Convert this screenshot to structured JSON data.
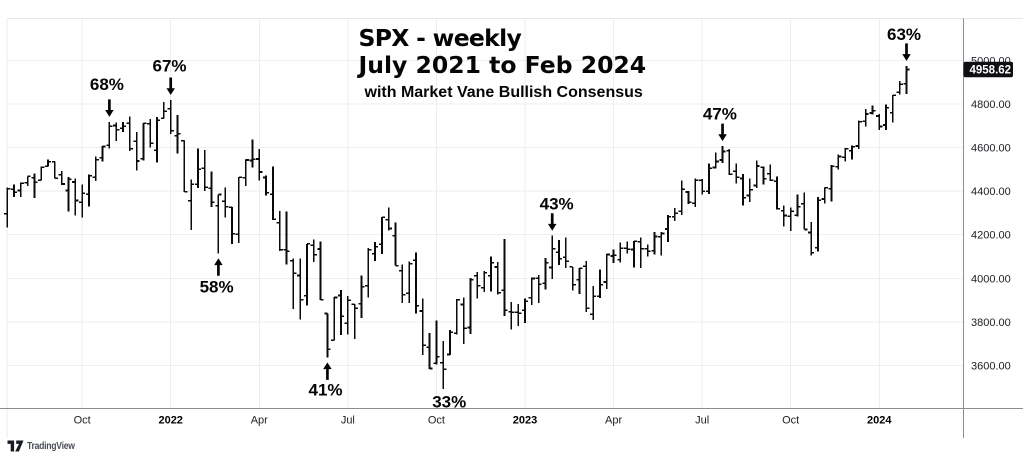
{
  "title": {
    "line1": "SPX - weekly",
    "line2": "July 2021 to Feb 2024",
    "subtitle": "with Market Vane Bullish Consensus"
  },
  "footer": {
    "brand": "TradingView",
    "logo_icon": "tradingview-logo"
  },
  "price_scale": {
    "labels": [
      {
        "text": "5000.00",
        "price": 5000
      },
      {
        "text": "4800.00",
        "price": 4800
      },
      {
        "text": "4600.00",
        "price": 4600
      },
      {
        "text": "4400.00",
        "price": 4400
      },
      {
        "text": "4200.00",
        "price": 4200
      },
      {
        "text": "4000.00",
        "price": 4000
      },
      {
        "text": "3800.00",
        "price": 3800
      },
      {
        "text": "3600.00",
        "price": 3600
      }
    ],
    "last_price_tag": {
      "text": "4958.62",
      "price": 4958.62
    }
  },
  "time_scale": {
    "labels": [
      {
        "text": "Oct",
        "week": 11,
        "bold": false
      },
      {
        "text": "2022",
        "week": 24,
        "bold": true
      },
      {
        "text": "Apr",
        "week": 37,
        "bold": false
      },
      {
        "text": "Jul",
        "week": 50,
        "bold": false
      },
      {
        "text": "Oct",
        "week": 63,
        "bold": false
      },
      {
        "text": "2023",
        "week": 76,
        "bold": true
      },
      {
        "text": "Apr",
        "week": 89,
        "bold": false
      },
      {
        "text": "Jul",
        "week": 102,
        "bold": false
      },
      {
        "text": "Oct",
        "week": 115,
        "bold": false
      },
      {
        "text": "2024",
        "week": 128,
        "bold": true
      }
    ]
  },
  "annotations": [
    {
      "label": "68%",
      "week": 15,
      "direction": "down",
      "text_dx": -2.5,
      "text_dy": -3.4
    },
    {
      "label": "67%",
      "week": 24,
      "direction": "down",
      "text_dx": -1.2,
      "text_dy": 0
    },
    {
      "label": "58%",
      "week": 31,
      "direction": "up",
      "text_dx": -1.8,
      "text_dy": 0
    },
    {
      "label": "41%",
      "week": 47,
      "direction": "up",
      "text_dx": -1.9,
      "text_dy": -1
    },
    {
      "label": "33%",
      "week": 64,
      "direction": "none",
      "text_dx": 6,
      "text_dy": 3
    },
    {
      "label": "43%",
      "week": 80,
      "direction": "down",
      "text_dx": 4.4,
      "text_dy": 2.5
    },
    {
      "label": "47%",
      "week": 105,
      "direction": "down",
      "text_dx": -2.7,
      "text_dy": 2.1
    },
    {
      "label": "63%",
      "week": 132,
      "direction": "down",
      "text_dx": -2.5,
      "text_dy": 2.6
    }
  ],
  "chart_data": {
    "type": "ohlc-bar",
    "symbol": "SPX",
    "timeframe": "weekly",
    "title": "SPX - weekly, July 2021 to Feb 2024, with Market Vane Bullish Consensus",
    "x_range": [
      "2021-07-19",
      "2024-01-29"
    ],
    "ylim": [
      3402,
      5193
    ],
    "grid": true,
    "columns": [
      "week_start",
      "open",
      "high",
      "low",
      "close"
    ],
    "bars": [
      [
        "2021-07-19",
        4296.4,
        4418.0,
        4233.1,
        4411.8
      ],
      [
        "2021-07-26",
        4409.6,
        4429.8,
        4372.5,
        4395.3
      ],
      [
        "2021-08-02",
        4402.9,
        4440.8,
        4373.0,
        4436.5
      ],
      [
        "2021-08-09",
        4437.8,
        4468.4,
        4424.7,
        4468.0
      ],
      [
        "2021-08-16",
        4461.6,
        4480.3,
        4367.7,
        4441.7
      ],
      [
        "2021-08-23",
        4450.3,
        4513.3,
        4450.3,
        4509.4
      ],
      [
        "2021-08-30",
        4513.8,
        4545.9,
        4513.8,
        4535.4
      ],
      [
        "2021-09-07",
        4535.4,
        4535.4,
        4457.7,
        4458.6
      ],
      [
        "2021-09-13",
        4474.8,
        4492.1,
        4427.8,
        4433.0
      ],
      [
        "2021-09-20",
        4402.9,
        4465.4,
        4305.9,
        4455.5
      ],
      [
        "2021-09-27",
        4442.1,
        4457.3,
        4288.5,
        4357.0
      ],
      [
        "2021-10-04",
        4348.8,
        4429.9,
        4278.9,
        4391.3
      ],
      [
        "2021-10-11",
        4385.4,
        4475.8,
        4329.9,
        4471.4
      ],
      [
        "2021-10-18",
        4463.7,
        4559.7,
        4447.5,
        4544.9
      ],
      [
        "2021-10-25",
        4553.7,
        4608.1,
        4537.4,
        4605.4
      ],
      [
        "2021-11-01",
        4610.6,
        4718.5,
        4595.1,
        4697.5
      ],
      [
        "2021-11-08",
        4701.5,
        4714.9,
        4630.9,
        4682.9
      ],
      [
        "2021-11-15",
        4689.3,
        4717.8,
        4672.8,
        4698.0
      ],
      [
        "2021-11-22",
        4712.0,
        4743.8,
        4585.4,
        4594.6
      ],
      [
        "2021-11-29",
        4628.8,
        4672.9,
        4495.1,
        4538.4
      ],
      [
        "2021-12-06",
        4548.4,
        4713.6,
        4540.5,
        4712.0
      ],
      [
        "2021-12-13",
        4710.3,
        4732.0,
        4600.2,
        4620.6
      ],
      [
        "2021-12-20",
        4587.9,
        4740.7,
        4531.1,
        4725.8
      ],
      [
        "2021-12-27",
        4734.0,
        4808.9,
        4734.0,
        4766.2
      ],
      [
        "2022-01-03",
        4778.1,
        4818.6,
        4662.7,
        4677.0
      ],
      [
        "2022-01-10",
        4655.3,
        4748.8,
        4573.0,
        4662.9
      ],
      [
        "2022-01-18",
        4632.2,
        4632.2,
        4395.3,
        4397.9
      ],
      [
        "2022-01-24",
        4356.3,
        4453.2,
        4222.6,
        4431.9
      ],
      [
        "2022-01-31",
        4431.8,
        4595.3,
        4414.0,
        4500.5
      ],
      [
        "2022-02-07",
        4505.8,
        4590.0,
        4401.4,
        4418.6
      ],
      [
        "2022-02-14",
        4412.6,
        4489.6,
        4327.2,
        4348.9
      ],
      [
        "2022-02-22",
        4332.7,
        4385.3,
        4114.7,
        4384.7
      ],
      [
        "2022-02-28",
        4354.2,
        4416.8,
        4279.5,
        4328.9
      ],
      [
        "2022-03-07",
        4327.0,
        4327.0,
        4157.9,
        4204.3
      ],
      [
        "2022-03-14",
        4202.8,
        4465.4,
        4161.7,
        4463.1
      ],
      [
        "2022-03-21",
        4462.4,
        4546.0,
        4424.3,
        4543.1
      ],
      [
        "2022-03-28",
        4541.1,
        4637.3,
        4507.6,
        4545.9
      ],
      [
        "2022-04-04",
        4547.9,
        4593.5,
        4450.0,
        4488.3
      ],
      [
        "2022-04-11",
        4462.6,
        4471.0,
        4381.3,
        4392.6
      ],
      [
        "2022-04-18",
        4385.6,
        4512.9,
        4267.6,
        4271.8
      ],
      [
        "2022-04-25",
        4255.3,
        4308.5,
        4124.3,
        4131.9
      ],
      [
        "2022-05-02",
        4130.6,
        4307.7,
        4062.5,
        4123.3
      ],
      [
        "2022-05-09",
        4081.3,
        4091.0,
        3858.9,
        4023.9
      ],
      [
        "2022-05-16",
        4013.0,
        4090.7,
        3810.3,
        3901.4
      ],
      [
        "2022-05-23",
        3919.4,
        4158.5,
        3875.1,
        4158.2
      ],
      [
        "2022-05-31",
        4151.1,
        4177.5,
        4073.9,
        4108.5
      ],
      [
        "2022-06-06",
        4134.7,
        4168.8,
        3900.2,
        3900.9
      ],
      [
        "2022-06-13",
        3838.2,
        3838.7,
        3636.9,
        3674.8
      ],
      [
        "2022-06-21",
        3715.3,
        3913.7,
        3715.3,
        3911.7
      ],
      [
        "2022-06-27",
        3920.8,
        3945.9,
        3738.7,
        3825.3
      ],
      [
        "2022-07-05",
        3792.6,
        3918.5,
        3742.1,
        3899.4
      ],
      [
        "2022-07-11",
        3880.9,
        3880.9,
        3721.6,
        3863.2
      ],
      [
        "2022-07-18",
        3883.8,
        4012.4,
        3818.6,
        3961.6
      ],
      [
        "2022-07-25",
        3965.7,
        4140.2,
        3910.7,
        4130.3
      ],
      [
        "2022-08-01",
        4112.4,
        4167.7,
        4079.8,
        4145.2
      ],
      [
        "2022-08-08",
        4155.9,
        4280.5,
        4112.1,
        4280.2
      ],
      [
        "2022-08-15",
        4269.4,
        4325.3,
        4218.7,
        4228.5
      ],
      [
        "2022-08-22",
        4195.1,
        4257.0,
        4057.7,
        4057.7
      ],
      [
        "2022-08-29",
        4034.6,
        4063.0,
        3886.4,
        3924.3
      ],
      [
        "2022-09-06",
        3930.9,
        4076.8,
        3886.8,
        4067.4
      ],
      [
        "2022-09-12",
        4083.7,
        4119.3,
        3837.6,
        3873.3
      ],
      [
        "2022-09-19",
        3849.9,
        3907.1,
        3647.5,
        3693.2
      ],
      [
        "2022-09-26",
        3682.7,
        3749.6,
        3584.1,
        3585.6
      ],
      [
        "2022-10-03",
        3609.8,
        3806.9,
        3604.9,
        3639.7
      ],
      [
        "2022-10-10",
        3612.3,
        3712.0,
        3491.6,
        3583.1
      ],
      [
        "2022-10-17",
        3650.0,
        3762.8,
        3647.4,
        3752.8
      ],
      [
        "2022-10-24",
        3748.0,
        3905.4,
        3741.7,
        3901.1
      ],
      [
        "2022-10-31",
        3879.8,
        3911.8,
        3698.2,
        3770.6
      ],
      [
        "2022-11-07",
        3774.1,
        4001.5,
        3744.2,
        3992.9
      ],
      [
        "2022-11-14",
        4012.4,
        4028.8,
        3906.5,
        3965.3
      ],
      [
        "2022-11-21",
        3956.2,
        4034.0,
        3937.7,
        4026.1
      ],
      [
        "2022-11-28",
        4011.0,
        4100.5,
        3938.4,
        4071.7
      ],
      [
        "2022-12-05",
        4052.0,
        4075.0,
        3925.0,
        3934.4
      ],
      [
        "2022-12-12",
        3944.8,
        4180.2,
        3827.9,
        3852.4
      ],
      [
        "2022-12-19",
        3846.0,
        3890.0,
        3764.5,
        3844.8
      ],
      [
        "2022-12-27",
        3843.3,
        3881.0,
        3780.8,
        3839.5
      ],
      [
        "2023-01-03",
        3853.3,
        3906.2,
        3794.3,
        3895.1
      ],
      [
        "2023-01-09",
        3910.8,
        4003.9,
        3877.3,
        3999.1
      ],
      [
        "2023-01-17",
        3999.3,
        4015.4,
        3885.5,
        3972.6
      ],
      [
        "2023-01-23",
        3978.1,
        4094.2,
        3949.1,
        4070.6
      ],
      [
        "2023-01-30",
        4049.3,
        4195.4,
        3996.0,
        4136.5
      ],
      [
        "2023-02-06",
        4119.5,
        4176.5,
        4060.8,
        4090.5
      ],
      [
        "2023-02-13",
        4096.6,
        4186.9,
        4047.9,
        4079.1
      ],
      [
        "2023-02-21",
        4052.3,
        4052.3,
        3943.1,
        3970.0
      ],
      [
        "2023-02-27",
        3992.4,
        4048.3,
        3928.2,
        4045.6
      ],
      [
        "2023-03-06",
        4055.1,
        4078.5,
        3846.3,
        3861.6
      ],
      [
        "2023-03-13",
        3835.1,
        3964.9,
        3808.9,
        3916.6
      ],
      [
        "2023-03-20",
        3917.0,
        4039.5,
        3909.2,
        3971.0
      ],
      [
        "2023-03-27",
        3982.9,
        4110.8,
        3951.5,
        4109.3
      ],
      [
        "2023-04-03",
        4102.2,
        4133.1,
        4069.8,
        4105.0
      ],
      [
        "2023-04-10",
        4085.2,
        4163.2,
        4072.6,
        4137.6
      ],
      [
        "2023-04-17",
        4137.2,
        4169.5,
        4113.9,
        4133.5
      ],
      [
        "2023-04-24",
        4132.0,
        4170.1,
        4049.4,
        4169.5
      ],
      [
        "2023-05-01",
        4167.9,
        4186.9,
        4048.3,
        4136.3
      ],
      [
        "2023-05-08",
        4136.3,
        4154.3,
        4098.9,
        4124.1
      ],
      [
        "2023-05-15",
        4126.7,
        4212.9,
        4109.9,
        4192.0
      ],
      [
        "2023-05-22",
        4190.8,
        4212.9,
        4104.0,
        4205.5
      ],
      [
        "2023-05-30",
        4226.4,
        4290.7,
        4166.2,
        4282.4
      ],
      [
        "2023-06-05",
        4282.9,
        4322.6,
        4263.1,
        4298.9
      ],
      [
        "2023-06-12",
        4308.3,
        4448.5,
        4290.1,
        4409.6
      ],
      [
        "2023-06-20",
        4396.1,
        4400.1,
        4341.3,
        4348.3
      ],
      [
        "2023-06-26",
        4344.8,
        4458.5,
        4328.1,
        4450.4
      ],
      [
        "2023-07-03",
        4450.5,
        4456.5,
        4385.1,
        4399.0
      ],
      [
        "2023-07-10",
        4399.9,
        4527.8,
        4386.4,
        4505.4
      ],
      [
        "2023-07-17",
        4508.6,
        4578.4,
        4504.9,
        4536.3
      ],
      [
        "2023-07-24",
        4543.4,
        4607.1,
        4528.6,
        4582.2
      ],
      [
        "2023-07-31",
        4584.8,
        4594.2,
        4474.6,
        4478.0
      ],
      [
        "2023-08-07",
        4491.6,
        4527.4,
        4436.3,
        4464.1
      ],
      [
        "2023-08-14",
        4458.1,
        4479.4,
        4335.3,
        4369.7
      ],
      [
        "2023-08-21",
        4380.3,
        4458.3,
        4350.3,
        4405.7
      ],
      [
        "2023-08-28",
        4426.0,
        4541.3,
        4414.5,
        4515.8
      ],
      [
        "2023-09-05",
        4510.1,
        4514.3,
        4430.5,
        4457.5
      ],
      [
        "2023-09-11",
        4480.0,
        4522.8,
        4447.2,
        4450.3
      ],
      [
        "2023-09-18",
        4445.1,
        4466.4,
        4316.5,
        4320.1
      ],
      [
        "2023-09-25",
        4310.6,
        4333.2,
        4238.6,
        4288.1
      ],
      [
        "2023-10-02",
        4284.5,
        4324.1,
        4216.5,
        4308.5
      ],
      [
        "2023-10-09",
        4289.0,
        4385.5,
        4283.8,
        4327.8
      ],
      [
        "2023-10-16",
        4342.4,
        4393.6,
        4223.0,
        4224.2
      ],
      [
        "2023-10-23",
        4210.4,
        4259.4,
        4103.8,
        4117.4
      ],
      [
        "2023-10-30",
        4139.4,
        4373.6,
        4122.8,
        4358.3
      ],
      [
        "2023-11-06",
        4364.3,
        4418.0,
        4343.9,
        4415.2
      ],
      [
        "2023-11-13",
        4412.0,
        4521.2,
        4353.3,
        4514.0
      ],
      [
        "2023-11-20",
        4511.7,
        4568.1,
        4499.7,
        4559.3
      ],
      [
        "2023-11-27",
        4555.8,
        4599.4,
        4537.2,
        4594.6
      ],
      [
        "2023-12-04",
        4586.2,
        4609.2,
        4546.5,
        4604.4
      ],
      [
        "2023-12-11",
        4607.4,
        4725.5,
        4593.4,
        4719.2
      ],
      [
        "2023-12-18",
        4721.0,
        4778.0,
        4697.8,
        4754.6
      ],
      [
        "2023-12-26",
        4758.9,
        4793.3,
        4751.0,
        4769.8
      ],
      [
        "2024-01-02",
        4745.2,
        4754.3,
        4682.1,
        4697.2
      ],
      [
        "2024-01-08",
        4703.7,
        4798.5,
        4682.1,
        4783.8
      ],
      [
        "2024-01-16",
        4760.1,
        4842.1,
        4714.8,
        4839.8
      ],
      [
        "2024-01-22",
        4853.4,
        4906.7,
        4844.1,
        4891.0
      ],
      [
        "2024-01-29",
        4892.9,
        4975.3,
        4845.2,
        4958.62
      ]
    ]
  },
  "colors": {
    "background": "#ffffff",
    "bar": "#0a0a0c",
    "grid": "#eceef1",
    "pane_border": "#e4e6ea",
    "axis_line": "#8b8d93",
    "axis_text": "#1b1d22",
    "year_text": "#000000",
    "annotation": "#050505",
    "tag_bg": "#0e0f12",
    "tag_text": "#ffffff",
    "logo": "#181b25",
    "brand_text": "#4a4e59"
  }
}
